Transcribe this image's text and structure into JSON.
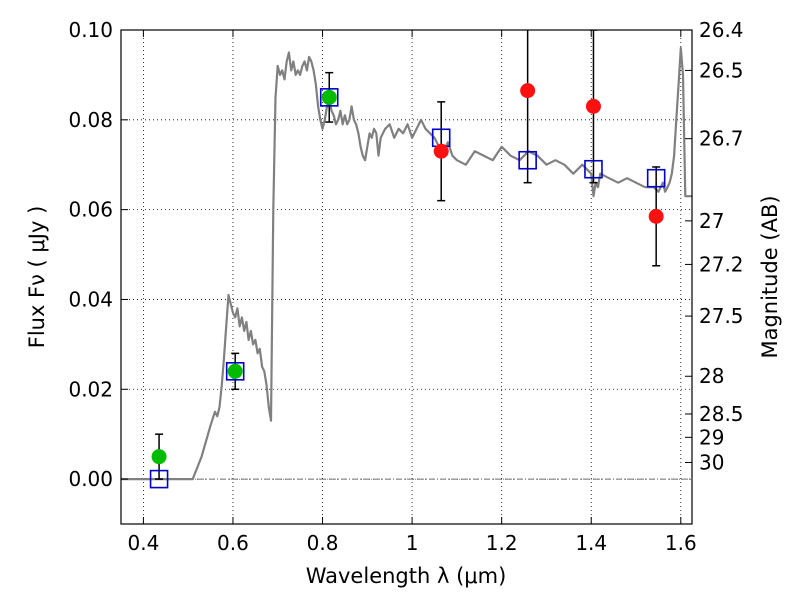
{
  "chart_data": {
    "type": "scatter",
    "xlabel": "Wavelength  λ (μm)",
    "ylabel": "Flux  Fν  ( μJy )",
    "ylabel_right": "Magnitude (AB)",
    "xlim": [
      0.35,
      1.625
    ],
    "ylim": [
      -0.01,
      0.1
    ],
    "grid": true,
    "x_ticks": [
      0.4,
      0.6,
      0.8,
      1.0,
      1.2,
      1.4,
      1.6
    ],
    "x_tick_labels": [
      "0.4",
      "0.6",
      "0.8",
      "1",
      "1.2",
      "1.4",
      "1.6"
    ],
    "y_ticks": [
      0.0,
      0.02,
      0.04,
      0.06,
      0.08,
      0.1
    ],
    "y_tick_labels": [
      "0.00",
      "0.02",
      "0.04",
      "0.06",
      "0.08",
      "0.10"
    ],
    "right_ticks": [
      {
        "label": "26.4",
        "flux": 0.1
      },
      {
        "label": "26.5",
        "flux": 0.091
      },
      {
        "label": "26.7",
        "flux": 0.0758
      },
      {
        "label": "27",
        "flux": 0.0575
      },
      {
        "label": "27.2",
        "flux": 0.0478
      },
      {
        "label": "27.5",
        "flux": 0.0363
      },
      {
        "label": "28",
        "flux": 0.0229
      },
      {
        "label": "28.5",
        "flux": 0.0145
      },
      {
        "label": "29",
        "flux": 0.0093
      },
      {
        "label": "30",
        "flux": 0.0037
      }
    ],
    "series": [
      {
        "kind": "model",
        "color": "#808080",
        "x": [
          0.35,
          0.51,
          0.53,
          0.55,
          0.56,
          0.565,
          0.57,
          0.575,
          0.58,
          0.585,
          0.59,
          0.595,
          0.6,
          0.605,
          0.61,
          0.615,
          0.62,
          0.625,
          0.63,
          0.635,
          0.64,
          0.645,
          0.65,
          0.655,
          0.66,
          0.665,
          0.67,
          0.675,
          0.68,
          0.685,
          0.69,
          0.695,
          0.7,
          0.705,
          0.71,
          0.715,
          0.72,
          0.725,
          0.73,
          0.735,
          0.74,
          0.745,
          0.75,
          0.755,
          0.76,
          0.765,
          0.77,
          0.775,
          0.78,
          0.785,
          0.79,
          0.795,
          0.8,
          0.805,
          0.81,
          0.815,
          0.82,
          0.825,
          0.83,
          0.835,
          0.84,
          0.845,
          0.85,
          0.855,
          0.86,
          0.865,
          0.87,
          0.875,
          0.88,
          0.885,
          0.89,
          0.895,
          0.9,
          0.905,
          0.91,
          0.915,
          0.92,
          0.925,
          0.93,
          0.94,
          0.95,
          0.96,
          0.97,
          0.98,
          0.99,
          1.0,
          1.01,
          1.02,
          1.03,
          1.04,
          1.05,
          1.06,
          1.07,
          1.08,
          1.09,
          1.1,
          1.12,
          1.14,
          1.16,
          1.18,
          1.2,
          1.22,
          1.24,
          1.26,
          1.28,
          1.3,
          1.32,
          1.34,
          1.36,
          1.38,
          1.4,
          1.405,
          1.41,
          1.415,
          1.42,
          1.44,
          1.46,
          1.48,
          1.5,
          1.52,
          1.54,
          1.55,
          1.56,
          1.565,
          1.57,
          1.575,
          1.58,
          1.585,
          1.59,
          1.595,
          1.6,
          1.605,
          1.61,
          1.625
        ],
        "y": [
          0.0,
          0.0,
          0.005,
          0.012,
          0.015,
          0.014,
          0.016,
          0.021,
          0.027,
          0.034,
          0.041,
          0.039,
          0.037,
          0.036,
          0.038,
          0.034,
          0.036,
          0.033,
          0.035,
          0.031,
          0.033,
          0.03,
          0.031,
          0.028,
          0.029,
          0.025,
          0.024,
          0.021,
          0.016,
          0.013,
          0.06,
          0.085,
          0.092,
          0.09,
          0.091,
          0.089,
          0.093,
          0.095,
          0.091,
          0.093,
          0.09,
          0.091,
          0.09,
          0.092,
          0.093,
          0.091,
          0.094,
          0.093,
          0.091,
          0.088,
          0.083,
          0.08,
          0.078,
          0.08,
          0.083,
          0.085,
          0.082,
          0.081,
          0.079,
          0.08,
          0.082,
          0.079,
          0.081,
          0.079,
          0.08,
          0.083,
          0.08,
          0.079,
          0.077,
          0.074,
          0.072,
          0.071,
          0.074,
          0.077,
          0.076,
          0.078,
          0.077,
          0.072,
          0.076,
          0.078,
          0.079,
          0.076,
          0.078,
          0.077,
          0.079,
          0.076,
          0.078,
          0.08,
          0.078,
          0.077,
          0.076,
          0.074,
          0.073,
          0.075,
          0.072,
          0.071,
          0.07,
          0.073,
          0.072,
          0.071,
          0.074,
          0.072,
          0.071,
          0.073,
          0.072,
          0.07,
          0.071,
          0.07,
          0.068,
          0.07,
          0.068,
          0.063,
          0.066,
          0.065,
          0.068,
          0.067,
          0.066,
          0.067,
          0.066,
          0.065,
          0.065,
          0.064,
          0.066,
          0.064,
          0.065,
          0.066,
          0.068,
          0.072,
          0.08,
          0.088,
          0.096,
          0.09,
          0.063,
          0.063
        ]
      },
      {
        "kind": "model-bands",
        "marker": "open-square",
        "color": "#0000cc",
        "x": [
          0.435,
          0.605,
          0.815,
          1.065,
          1.258,
          1.405,
          1.545
        ],
        "y": [
          0.0,
          0.024,
          0.085,
          0.076,
          0.071,
          0.069,
          0.067
        ]
      },
      {
        "kind": "detections",
        "marker": "filled-circle",
        "color": "#00bb00",
        "x": [
          0.435,
          0.605,
          0.815
        ],
        "y": [
          0.005,
          0.024,
          0.085
        ],
        "y_err": [
          0.005,
          0.004,
          0.0055
        ]
      },
      {
        "kind": "detections",
        "marker": "filled-circle",
        "color": "#ff1010",
        "x": [
          1.065,
          1.258,
          1.405,
          1.545
        ],
        "y": [
          0.073,
          0.0865,
          0.083,
          0.0585
        ],
        "y_err": [
          0.011,
          0.0205,
          0.017,
          0.011
        ]
      }
    ],
    "zero_line": 0.0
  }
}
